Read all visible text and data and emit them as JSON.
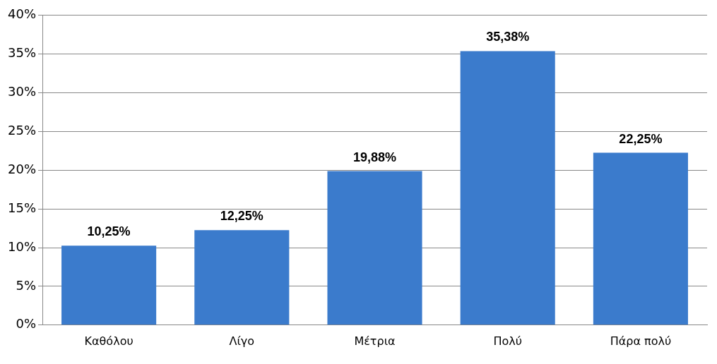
{
  "chart_data": {
    "type": "bar",
    "categories": [
      "Καθόλου",
      "Λίγο",
      "Μέτρια",
      "Πολύ",
      "Πάρα πολύ"
    ],
    "values": [
      10.25,
      12.25,
      19.88,
      35.38,
      22.25
    ],
    "value_labels": [
      "10,25%",
      "12,25%",
      "19,88%",
      "35,38%",
      "22,25%"
    ],
    "color": "#3b7bcc",
    "ylim": [
      0,
      40
    ],
    "yticks": [
      {
        "value": 0,
        "label": "0%"
      },
      {
        "value": 5,
        "label": "5%"
      },
      {
        "value": 10,
        "label": "10%"
      },
      {
        "value": 15,
        "label": "15%"
      },
      {
        "value": 20,
        "label": "20%"
      },
      {
        "value": 25,
        "label": "25%"
      },
      {
        "value": 30,
        "label": "30%"
      },
      {
        "value": 35,
        "label": "35%"
      },
      {
        "value": 40,
        "label": "40%"
      }
    ],
    "grid": "y"
  }
}
